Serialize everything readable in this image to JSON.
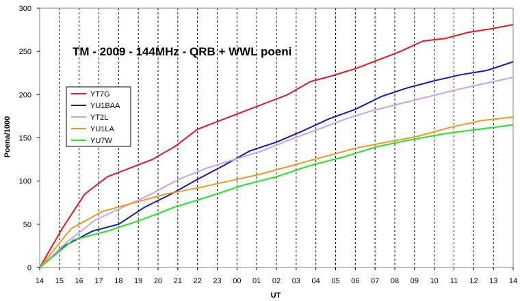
{
  "chart_data": {
    "type": "line",
    "title": "TM - 2009 - 144MHz - QRB + WWL poeni",
    "xlabel": "UT",
    "ylabel": "Poena/1000",
    "ylim": [
      0,
      300
    ],
    "yticks": [
      "0",
      "50",
      "100",
      "150",
      "200",
      "250",
      "300"
    ],
    "xticks": [
      "14",
      "15",
      "16",
      "17",
      "18",
      "19",
      "20",
      "21",
      "22",
      "23",
      "00",
      "01",
      "02",
      "03",
      "04",
      "05",
      "06",
      "07",
      "08",
      "09",
      "10",
      "11",
      "12",
      "13",
      "14"
    ],
    "grid": "vertical dashed",
    "legend": "left, upper-middle",
    "series": [
      {
        "name": "YT7G",
        "color": "#e8141e",
        "values": [
          0,
          45,
          85,
          105,
          115,
          125,
          140,
          160,
          170,
          180,
          190,
          200,
          215,
          222,
          230,
          240,
          250,
          262,
          265,
          272,
          276,
          281
        ]
      },
      {
        "name": "YU1BAA",
        "color": "#1414c8",
        "values": [
          0,
          26,
          42,
          50,
          70,
          85,
          102,
          118,
          135,
          145,
          158,
          172,
          183,
          198,
          208,
          216,
          223,
          228,
          238
        ]
      },
      {
        "name": "YT2L",
        "color": "#c8a0f0",
        "values": [
          0,
          30,
          55,
          70,
          85,
          102,
          115,
          125,
          135,
          148,
          160,
          172,
          182,
          190,
          198,
          206,
          213,
          220
        ]
      },
      {
        "name": "YU1LA",
        "color": "#f0961e",
        "values": [
          0,
          45,
          65,
          75,
          85,
          92,
          100,
          108,
          118,
          128,
          138,
          145,
          152,
          162,
          170,
          174
        ]
      },
      {
        "name": "YU7W",
        "color": "#1ee61e",
        "values": [
          0,
          32,
          42,
          55,
          70,
          82,
          95,
          105,
          118,
          128,
          140,
          148,
          155,
          160,
          165
        ]
      }
    ]
  }
}
